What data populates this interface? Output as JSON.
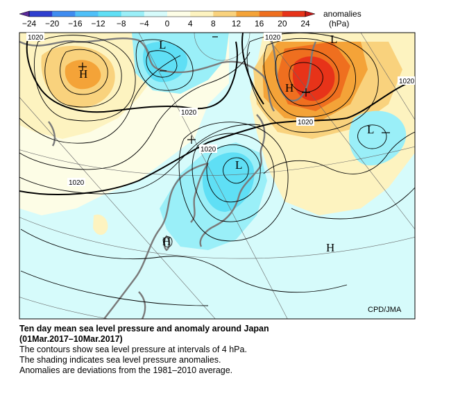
{
  "colorbar": {
    "label": "anomalies",
    "unit": "(hPa)",
    "ticks": [
      "−24",
      "−20",
      "−16",
      "−12",
      "−8",
      "−4",
      "0",
      "4",
      "8",
      "12",
      "16",
      "20",
      "24"
    ],
    "colors": [
      "#2f3fcf",
      "#3f8cf0",
      "#4fc0f8",
      "#5fdff5",
      "#9aeff8",
      "#d6fbfb",
      "#fdfde6",
      "#fdf3c0",
      "#f9d27d",
      "#f4a338",
      "#ef6f1f",
      "#e73319"
    ]
  },
  "map": {
    "isobar_labels": [
      "1020",
      "1020",
      "1020",
      "1020",
      "1020",
      "1020",
      "1020"
    ],
    "pressure_centers": [
      "H",
      "L",
      "H",
      "L",
      "L",
      "H",
      "L",
      "H"
    ],
    "credit": "CPD/JMA"
  },
  "caption": {
    "title_line1": "Ten day mean sea level pressure and anomaly around Japan",
    "title_line2": "(01Mar.2017–10Mar.2017)",
    "line1": "The contours show sea level pressure at intervals of 4 hPa.",
    "line2": "The shading indicates sea level pressure anomalies.",
    "line3": "Anomalies are deviations from the 1981–2010 average."
  }
}
